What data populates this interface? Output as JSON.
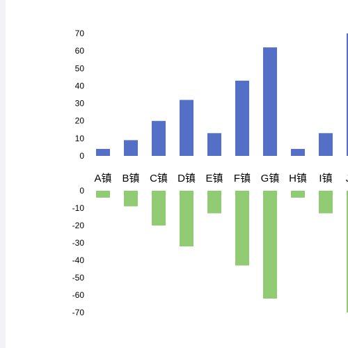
{
  "colors": {
    "top": "#5470c6",
    "bottom": "#91cc75"
  },
  "chart_data": [
    {
      "type": "bar",
      "categories": [
        "A镇",
        "B镇",
        "C镇",
        "D镇",
        "E镇",
        "F镇",
        "G镇",
        "H镇",
        "I镇",
        "J镇"
      ],
      "values": [
        4,
        9,
        20,
        32,
        13,
        43,
        62,
        4,
        13,
        70
      ],
      "ylim": [
        0,
        70
      ],
      "yticks": [
        "0",
        "10",
        "20",
        "30",
        "40",
        "50",
        "60",
        "70"
      ],
      "grid": false,
      "color": "#5470c6"
    },
    {
      "type": "bar",
      "categories": [
        "A镇",
        "B镇",
        "C镇",
        "D镇",
        "E镇",
        "F镇",
        "G镇",
        "H镇",
        "I镇",
        "J镇"
      ],
      "values": [
        -4,
        -9,
        -20,
        -32,
        -13,
        -43,
        -62,
        -4,
        -13,
        -70
      ],
      "ylim": [
        -70,
        0
      ],
      "yticks": [
        "0",
        "-10",
        "-20",
        "-30",
        "-40",
        "-50",
        "-60",
        "-70"
      ],
      "grid": false,
      "color": "#91cc75"
    }
  ]
}
